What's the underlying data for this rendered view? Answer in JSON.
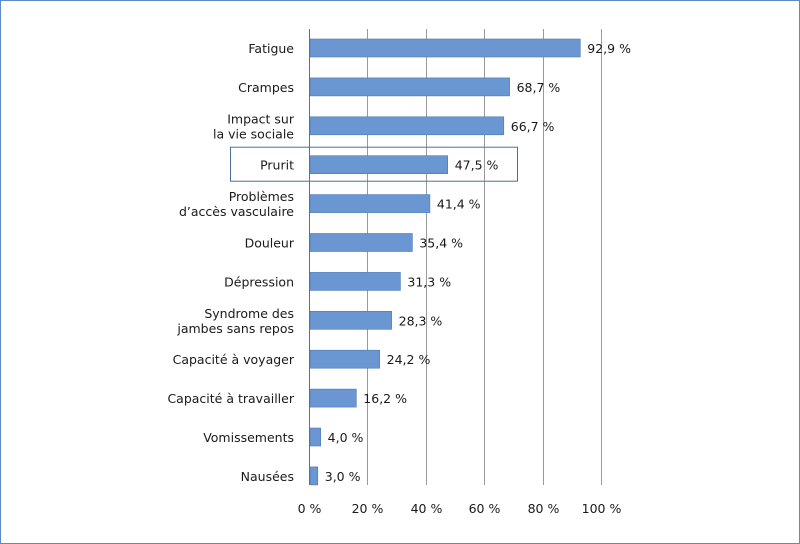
{
  "chart_data": {
    "type": "bar",
    "orientation": "horizontal",
    "categories": [
      "Fatigue",
      "Crampes",
      "Impact sur\nla vie sociale",
      "Prurit",
      "Problèmes\nd’accès vasculaire",
      "Douleur",
      "Dépression",
      "Syndrome des\njambes sans repos",
      "Capacité à voyager",
      "Capacité à travailler",
      "Vomissements",
      "Nausées"
    ],
    "values": [
      92.9,
      68.7,
      66.7,
      47.5,
      41.4,
      35.4,
      31.3,
      28.3,
      24.2,
      16.2,
      4.0,
      3.0
    ],
    "value_labels": [
      "92,9 %",
      "68,7 %",
      "66,7 %",
      "47,5 %",
      "41,4 %",
      "35,4 %",
      "31,3 %",
      "28,3 %",
      "24,2 %",
      "16,2 %",
      "4,0 %",
      "3,0 %"
    ],
    "xlim": [
      0,
      100
    ],
    "xticks": [
      0,
      20,
      40,
      60,
      80,
      100
    ],
    "xtick_labels": [
      "0 %",
      "20 %",
      "40 %",
      "60 %",
      "80 %",
      "100 %"
    ],
    "highlighted_category": "Prurit",
    "grid": true,
    "bar_color": "#6a97d1",
    "title": "",
    "xlabel": "",
    "ylabel": ""
  }
}
